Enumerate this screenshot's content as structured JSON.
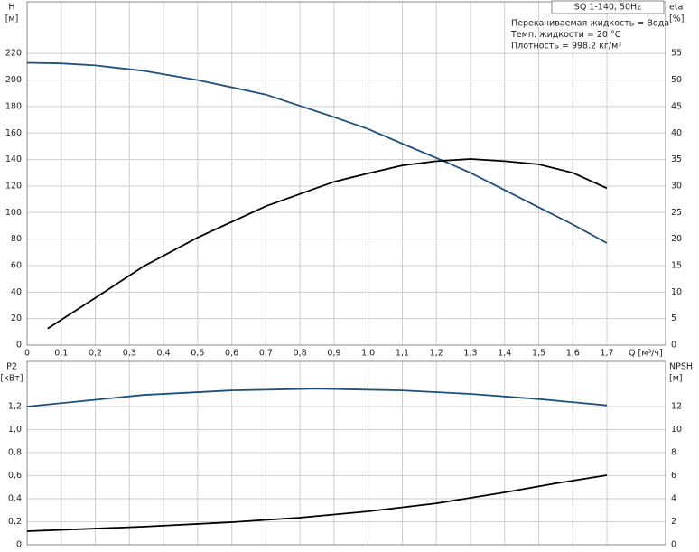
{
  "chart_data": [
    {
      "type": "line",
      "title": "SQ 1-140, 50Hz",
      "notes": [
        "Перекачиваемая жидкость = Вода",
        "Темп. жидкости = 20 °C",
        "Плотность = 998.2 кг/м³"
      ],
      "ylabel": "H",
      "yunit": "[м]",
      "y2label": "eta",
      "y2unit": "[%]",
      "xlabel": "Q [м³/ч]",
      "xlim": [
        0,
        1.872
      ],
      "ylim": [
        0,
        259
      ],
      "y2lim": [
        0,
        64.75
      ],
      "grid": true,
      "xticks": [
        0,
        {
          "value": 0.1,
          "label": "0,1"
        },
        {
          "value": 0.2,
          "label": "0,2"
        },
        {
          "value": 0.3,
          "label": "0,3"
        },
        {
          "value": 0.4,
          "label": "0,4"
        },
        {
          "value": 0.5,
          "label": "0,5"
        },
        {
          "value": 0.6,
          "label": "0,6"
        },
        {
          "value": 0.7,
          "label": "0,7"
        },
        {
          "value": 0.8,
          "label": "0,8"
        },
        {
          "value": 0.9,
          "label": "0,9"
        },
        {
          "value": 1.0,
          "label": "1,0"
        },
        {
          "value": 1.1,
          "label": "1,1"
        },
        {
          "value": 1.2,
          "label": "1,2"
        },
        {
          "value": 1.3,
          "label": "1,3"
        },
        {
          "value": 1.4,
          "label": "1,4"
        },
        {
          "value": 1.5,
          "label": "1,5"
        },
        {
          "value": 1.6,
          "label": "1,6"
        },
        {
          "value": 1.7,
          "label": "1,7"
        }
      ],
      "yticks": [
        0,
        20,
        40,
        60,
        80,
        100,
        120,
        140,
        160,
        180,
        200,
        220
      ],
      "y2ticks": [
        0,
        5,
        10,
        15,
        20,
        25,
        30,
        35,
        40,
        45,
        50,
        55
      ],
      "series": [
        {
          "color": "#1f4f7d",
          "x": [
            0,
            0.1,
            0.2,
            0.34,
            0.5,
            0.7,
            0.9,
            1.0,
            1.1,
            1.22,
            1.3,
            1.4,
            1.5,
            1.6,
            1.7
          ],
          "values": [
            213,
            212.5,
            211,
            207,
            200,
            189,
            172,
            163,
            152,
            139,
            130,
            117,
            104,
            91,
            77
          ]
        },
        {
          "color": "#000000",
          "axis": "y2",
          "x": [
            0.06,
            0.2,
            0.34,
            0.5,
            0.7,
            0.9,
            1.0,
            1.1,
            1.2,
            1.3,
            1.4,
            1.5,
            1.6,
            1.7
          ],
          "values": [
            3.1,
            8.9,
            14.8,
            20.3,
            26.2,
            30.8,
            32.4,
            33.9,
            34.7,
            35.1,
            34.7,
            34.1,
            32.5,
            29.6
          ]
        }
      ]
    },
    {
      "type": "line",
      "ylabel": "P2",
      "yunit": "[кВт]",
      "y2label": "NPSH",
      "y2unit": "[м]",
      "xlim": [
        0,
        1.872
      ],
      "ylim": [
        0,
        1.592
      ],
      "y2lim": [
        0,
        15.92
      ],
      "grid": true,
      "yticks": [
        0,
        {
          "value": 0.2,
          "label": "0,2"
        },
        {
          "value": 0.4,
          "label": "0,4"
        },
        {
          "value": 0.6,
          "label": "0,6"
        },
        {
          "value": 0.8,
          "label": "0,8"
        },
        {
          "value": 1.0,
          "label": "1,0"
        },
        {
          "value": 1.2,
          "label": "1,2"
        }
      ],
      "y2ticks": [
        0,
        2,
        4,
        6,
        8,
        10,
        12
      ],
      "series": [
        {
          "color": "#1f4f7d",
          "x": [
            0,
            0.34,
            0.6,
            0.85,
            1.1,
            1.3,
            1.5,
            1.7
          ],
          "values": [
            1.2,
            1.3,
            1.34,
            1.355,
            1.34,
            1.31,
            1.265,
            1.21
          ]
        },
        {
          "color": "#000000",
          "axis": "y2",
          "x": [
            0,
            0.34,
            0.6,
            0.8,
            1.0,
            1.2,
            1.4,
            1.55,
            1.7
          ],
          "values": [
            1.18,
            1.57,
            1.96,
            2.35,
            2.9,
            3.6,
            4.55,
            5.33,
            6.04
          ]
        }
      ]
    }
  ]
}
